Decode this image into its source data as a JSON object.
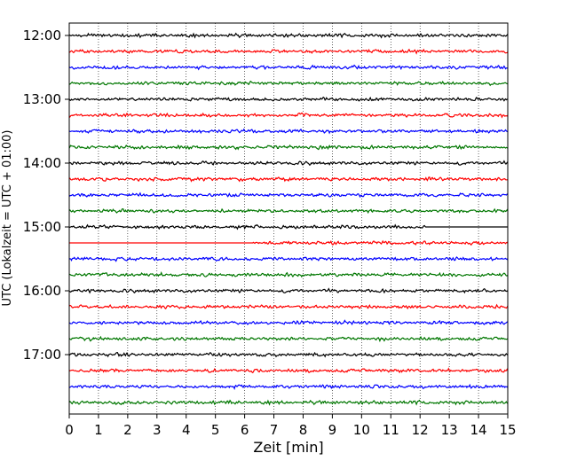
{
  "chart_data": {
    "type": "line",
    "title": "",
    "xlabel": "Zeit  [min]",
    "ylabel": "UTC (Lokalzeit = UTC + 01:00)",
    "xlim": [
      0,
      15
    ],
    "x_ticks": [
      0,
      1,
      2,
      3,
      4,
      5,
      6,
      7,
      8,
      9,
      10,
      11,
      12,
      13,
      14,
      15
    ],
    "y_tick_labels": [
      "12:00",
      "13:00",
      "14:00",
      "15:00",
      "16:00",
      "17:00"
    ],
    "grid": "vertical dotted",
    "row_minutes": 15,
    "trace_colors": [
      "#000000",
      "#ff0000",
      "#0000ff",
      "#007700"
    ],
    "traces": [
      {
        "start": "12:00"
      },
      {
        "start": "12:15"
      },
      {
        "start": "12:30"
      },
      {
        "start": "12:45"
      },
      {
        "start": "13:00"
      },
      {
        "start": "13:15"
      },
      {
        "start": "13:30"
      },
      {
        "start": "13:45"
      },
      {
        "start": "14:00"
      },
      {
        "start": "14:15"
      },
      {
        "start": "14:30"
      },
      {
        "start": "14:45"
      },
      {
        "start": "15:00",
        "note": "signal flat from ~12.2 min"
      },
      {
        "start": "15:15",
        "note": "signal flat until ~6.3 min"
      },
      {
        "start": "15:30"
      },
      {
        "start": "15:45"
      },
      {
        "start": "16:00"
      },
      {
        "start": "16:15"
      },
      {
        "start": "16:30"
      },
      {
        "start": "16:45"
      },
      {
        "start": "17:00"
      },
      {
        "start": "17:15"
      },
      {
        "start": "17:30"
      },
      {
        "start": "17:45"
      }
    ]
  }
}
